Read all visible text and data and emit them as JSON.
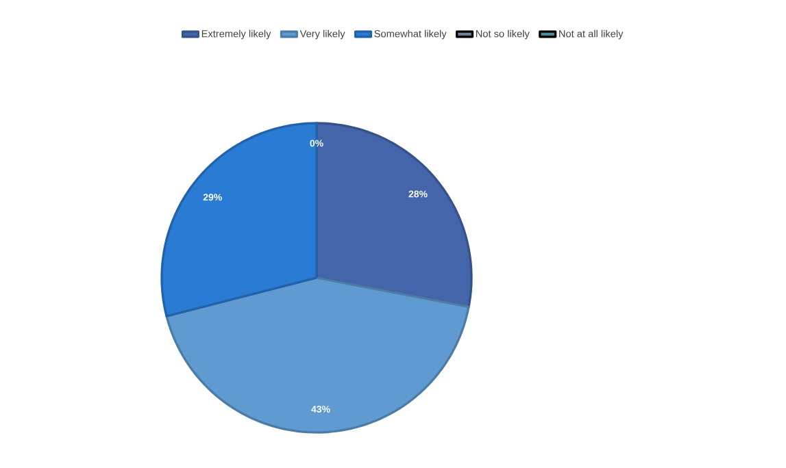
{
  "chart_data": {
    "type": "pie",
    "categories": [
      "Extremely likely",
      "Very likely",
      "Somewhat likely",
      "Not so likely",
      "Not at all likely"
    ],
    "values": [
      28,
      43,
      29,
      0,
      0
    ],
    "colors": [
      "#4565ab",
      "#5f9bd0",
      "#297bd4",
      "#6f7f97",
      "#4a8f98"
    ],
    "value_labels": [
      "28%",
      "43%",
      "29%",
      "0%",
      null
    ],
    "legend": "top"
  }
}
